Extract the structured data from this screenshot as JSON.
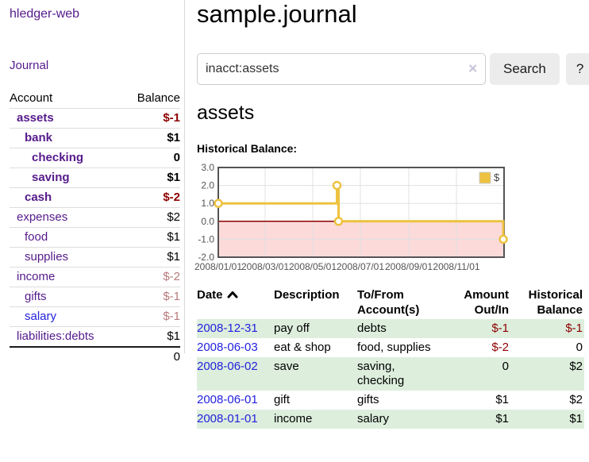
{
  "colors": {
    "link_purple": "#551a8b",
    "link_blue": "#2422dd",
    "negative_strong": "#8e0000",
    "negative_muted": "#b87a7a",
    "row_highlight_green": "#ddeedd",
    "button_gray": "#ececec",
    "divider_gray": "#d8d8d8",
    "chart_line_gold": "#edc240",
    "chart_negative_fill": "#fcdada",
    "chart_zero_line": "#8b0000",
    "chart_grid": "#e0e0e0",
    "chart_border": "#545454"
  },
  "sidebar": {
    "app_title": "hledger-web",
    "journal_link": "Journal",
    "accounts_table": {
      "account_header": "Account",
      "balance_header": "Balance",
      "rows": [
        {
          "name": "assets",
          "indent": 1,
          "balance": "$-1",
          "bold": true,
          "balance_color": "strong-negative",
          "link_color": "purple"
        },
        {
          "name": "bank",
          "indent": 2,
          "balance": "$1",
          "bold": true,
          "balance_color": "normal",
          "link_color": "purple"
        },
        {
          "name": "checking",
          "indent": 3,
          "balance": "0",
          "bold": true,
          "balance_color": "normal",
          "link_color": "purple"
        },
        {
          "name": "saving",
          "indent": 3,
          "balance": "$1",
          "bold": true,
          "balance_color": "normal",
          "link_color": "purple"
        },
        {
          "name": "cash",
          "indent": 2,
          "balance": "$-2",
          "bold": true,
          "balance_color": "strong-negative",
          "link_color": "purple"
        },
        {
          "name": "expenses",
          "indent": 1,
          "balance": "$2",
          "bold": false,
          "balance_color": "normal",
          "link_color": "purple"
        },
        {
          "name": "food",
          "indent": 2,
          "balance": "$1",
          "bold": false,
          "balance_color": "normal",
          "link_color": "purple"
        },
        {
          "name": "supplies",
          "indent": 2,
          "balance": "$1",
          "bold": false,
          "balance_color": "normal",
          "link_color": "purple"
        },
        {
          "name": "income",
          "indent": 1,
          "balance": "$-2",
          "bold": false,
          "balance_color": "muted-negative",
          "link_color": "purple"
        },
        {
          "name": "gifts",
          "indent": 2,
          "balance": "$-1",
          "bold": false,
          "balance_color": "muted-negative",
          "link_color": "purple"
        },
        {
          "name": "salary",
          "indent": 2,
          "balance": "$-1",
          "bold": false,
          "balance_color": "muted-negative",
          "link_color": "blue"
        },
        {
          "name": "liabilities:debts",
          "indent": 1,
          "balance": "$1",
          "bold": false,
          "balance_color": "normal",
          "link_color": "purple"
        }
      ],
      "total": "0"
    }
  },
  "main": {
    "title": "sample.journal",
    "search": {
      "value": "inacct:assets",
      "clear_icon": "✕",
      "search_button": "Search",
      "help_button": "?"
    },
    "account_heading": "assets",
    "chart_title": "Historical Balance:"
  },
  "chart_data": {
    "type": "step-line",
    "title": "Historical Balance:",
    "series": [
      {
        "name": "$",
        "color": "#edc240",
        "points": [
          [
            "2008/01/01",
            1
          ],
          [
            "2008/06/01",
            2
          ],
          [
            "2008/06/03",
            0
          ],
          [
            "2008/12/31",
            -1
          ]
        ]
      }
    ],
    "xlim": [
      "2008/01/01",
      "2009/01/01"
    ],
    "ylim": [
      -2.0,
      3.0
    ],
    "yticks": [
      3.0,
      2.0,
      1.0,
      0.0,
      -1.0,
      -2.0
    ],
    "xtick_labels": [
      "2008/01/01",
      "2008/03/01",
      "2008/05/01",
      "2008/07/01",
      "2008/09/01",
      "2008/11/01"
    ],
    "legend": {
      "position": "top-right",
      "entries": [
        "$"
      ]
    },
    "grid": true,
    "negative_region_fill": "#fcdada",
    "zero_line_color": "#8b0000"
  },
  "register": {
    "headers": {
      "date": "Date",
      "description": "Description",
      "tofrom": "To/From Account(s)",
      "amount": "Amount Out/In",
      "balance": "Historical Balance"
    },
    "sort_icon": "chevron-up",
    "rows": [
      {
        "date": "2008-12-31",
        "description": "pay off",
        "accounts": "debts",
        "amount": "$-1",
        "amount_negative": true,
        "balance": "$-1",
        "balance_negative": true,
        "shaded": true
      },
      {
        "date": "2008-06-03",
        "description": "eat & shop",
        "accounts": "food, supplies",
        "amount": "$-2",
        "amount_negative": true,
        "balance": "0",
        "balance_negative": false,
        "shaded": false
      },
      {
        "date": "2008-06-02",
        "description": "save",
        "accounts": "saving, checking",
        "amount": "0",
        "amount_negative": false,
        "balance": "$2",
        "balance_negative": false,
        "shaded": true
      },
      {
        "date": "2008-06-01",
        "description": "gift",
        "accounts": "gifts",
        "amount": "$1",
        "amount_negative": false,
        "balance": "$2",
        "balance_negative": false,
        "shaded": false
      },
      {
        "date": "2008-01-01",
        "description": "income",
        "accounts": "salary",
        "amount": "$1",
        "amount_negative": false,
        "balance": "$1",
        "balance_negative": false,
        "shaded": true
      }
    ]
  }
}
